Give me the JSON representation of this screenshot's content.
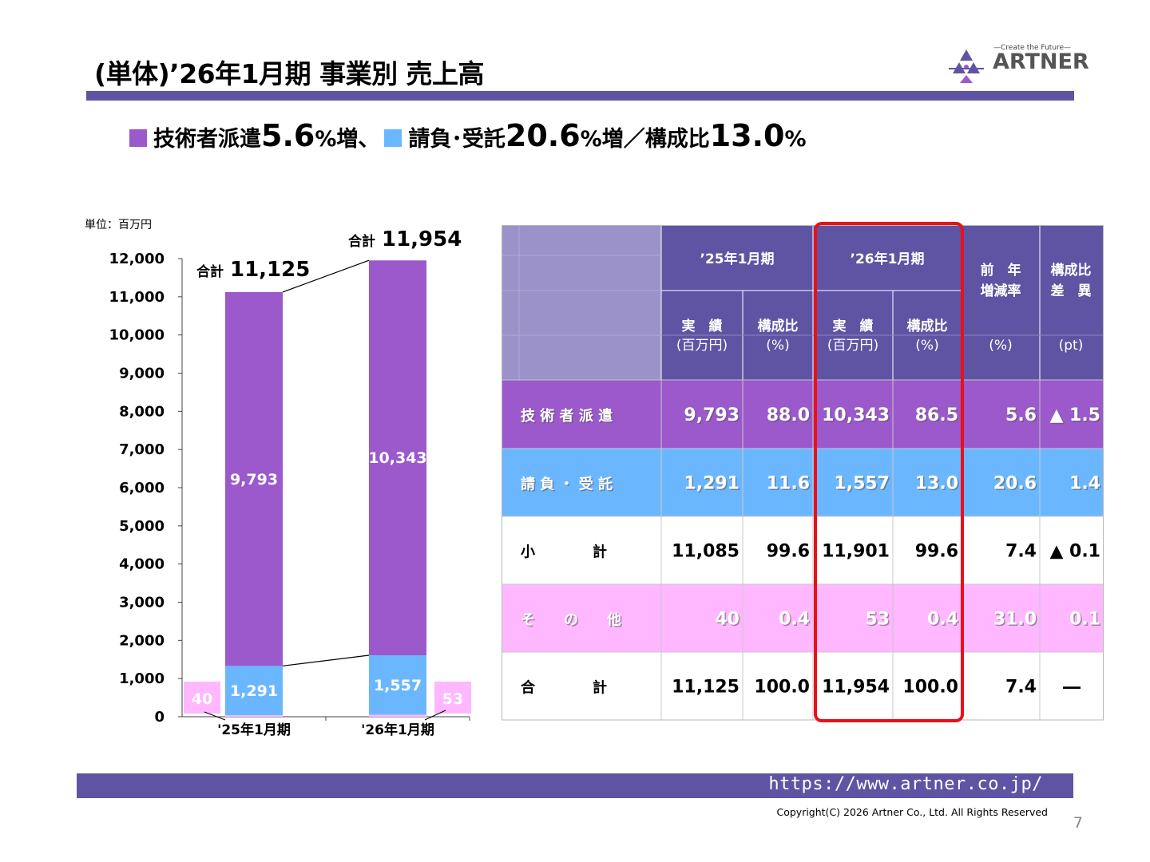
{
  "title": "(単体)’26年1月期 事業別 売上高",
  "logo": {
    "tagline": "—Create the Future—",
    "name": "ARTNER",
    "icon": "artner-logo-icon"
  },
  "subtitle": {
    "part1_label": "技術者派遣",
    "part1_value": "5.6",
    "part1_suffix": "%増、",
    "part2_label": "請負･受託",
    "part2_value": "20.6",
    "part2_suffix": "%増／構成比",
    "part3_value": "13.0",
    "part3_suffix": "%"
  },
  "colors": {
    "dispatch": "#9b59cc",
    "contract": "#6bb7ff",
    "other": "#ffb7ff",
    "header": "#5f54a3",
    "header_light": "#9a92c8",
    "accent": "#e8101a"
  },
  "chart_data": {
    "type": "bar",
    "stacked": true,
    "unit_label": "単位：百万円",
    "categories": [
      "'25年1月期",
      "'26年1月期"
    ],
    "series": [
      {
        "key": "contract",
        "values": [
          1291,
          1557
        ],
        "labels": [
          "1,291",
          "1,557"
        ]
      },
      {
        "key": "dispatch",
        "values": [
          9793,
          10343
        ],
        "labels": [
          "9,793",
          "10,343"
        ]
      }
    ],
    "other": {
      "values": [
        40,
        53
      ],
      "labels": [
        "40",
        "53"
      ]
    },
    "totals": {
      "prefix": "合計",
      "labels": [
        "11,125",
        "11,954"
      ],
      "values": [
        11125,
        11954
      ]
    },
    "ylim": [
      0,
      12000
    ],
    "yticks": [
      0,
      1000,
      2000,
      3000,
      4000,
      5000,
      6000,
      7000,
      8000,
      9000,
      10000,
      11000,
      12000
    ],
    "ytick_labels": [
      "0",
      "1,000",
      "2,000",
      "3,000",
      "4,000",
      "5,000",
      "6,000",
      "7,000",
      "8,000",
      "9,000",
      "10,000",
      "11,000",
      "12,000"
    ]
  },
  "table": {
    "period1": "’25年1月期",
    "period2": "’26年1月期",
    "yoy_header": "前　年\n増減率",
    "diff_header": "構成比\n差　異",
    "actual": "実　績",
    "ratio": "構成比",
    "unit_million": "(百万円)",
    "unit_percent": "(%)",
    "unit_pt": "(pt)",
    "rows": [
      {
        "label": "技 術 者 派 遣",
        "style": "dispatch",
        "cells": [
          "9,793",
          "88.0",
          "10,343",
          "86.5",
          "5.6",
          "▲ 1.5"
        ]
      },
      {
        "label": "請 負 ・ 受 託",
        "style": "contract",
        "cells": [
          "1,291",
          "11.6",
          "1,557",
          "13.0",
          "20.6",
          "1.4"
        ]
      },
      {
        "label": "小　　　　計",
        "style": "plain",
        "cells": [
          "11,085",
          "99.6",
          "11,901",
          "99.6",
          "7.4",
          "▲ 0.1"
        ]
      },
      {
        "label": "そ　　の　　他",
        "style": "other",
        "cells": [
          "40",
          "0.4",
          "53",
          "0.4",
          "31.0",
          "0.1"
        ]
      },
      {
        "label": "合　　　　計",
        "style": "plain",
        "cells": [
          "11,125",
          "100.0",
          "11,954",
          "100.0",
          "7.4",
          "―"
        ]
      }
    ]
  },
  "footer": {
    "url": "https://www.artner.co.jp/",
    "copyright": "Copyright(C) 2026 Artner Co., Ltd. All Rights Reserved",
    "page": "7"
  }
}
